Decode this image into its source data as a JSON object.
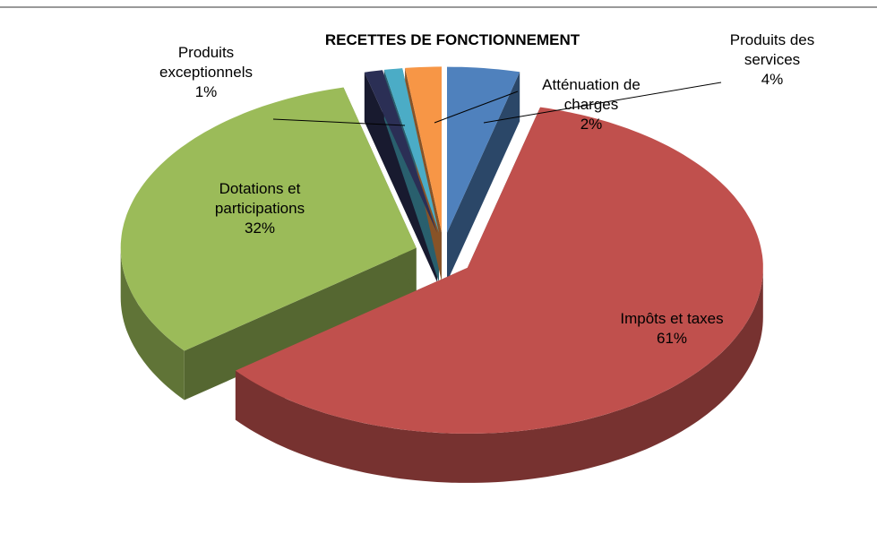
{
  "chart_data": {
    "type": "pie",
    "title": "RECETTES DE FONCTIONNEMENT",
    "categories": [
      "Produits des services",
      "Impôts et taxes",
      "Dotations et participations",
      null,
      "Produits exceptionnels",
      "Atténuation de charges"
    ],
    "values": [
      4,
      61,
      32,
      1,
      1,
      2
    ],
    "value_labels": [
      "4%",
      "61%",
      "32%",
      null,
      "1%",
      "2%"
    ],
    "colors": [
      "#4f81bd",
      "#c0504d",
      "#9bbb59",
      "#2b2f55",
      "#4bacc6",
      "#f79646"
    ]
  }
}
